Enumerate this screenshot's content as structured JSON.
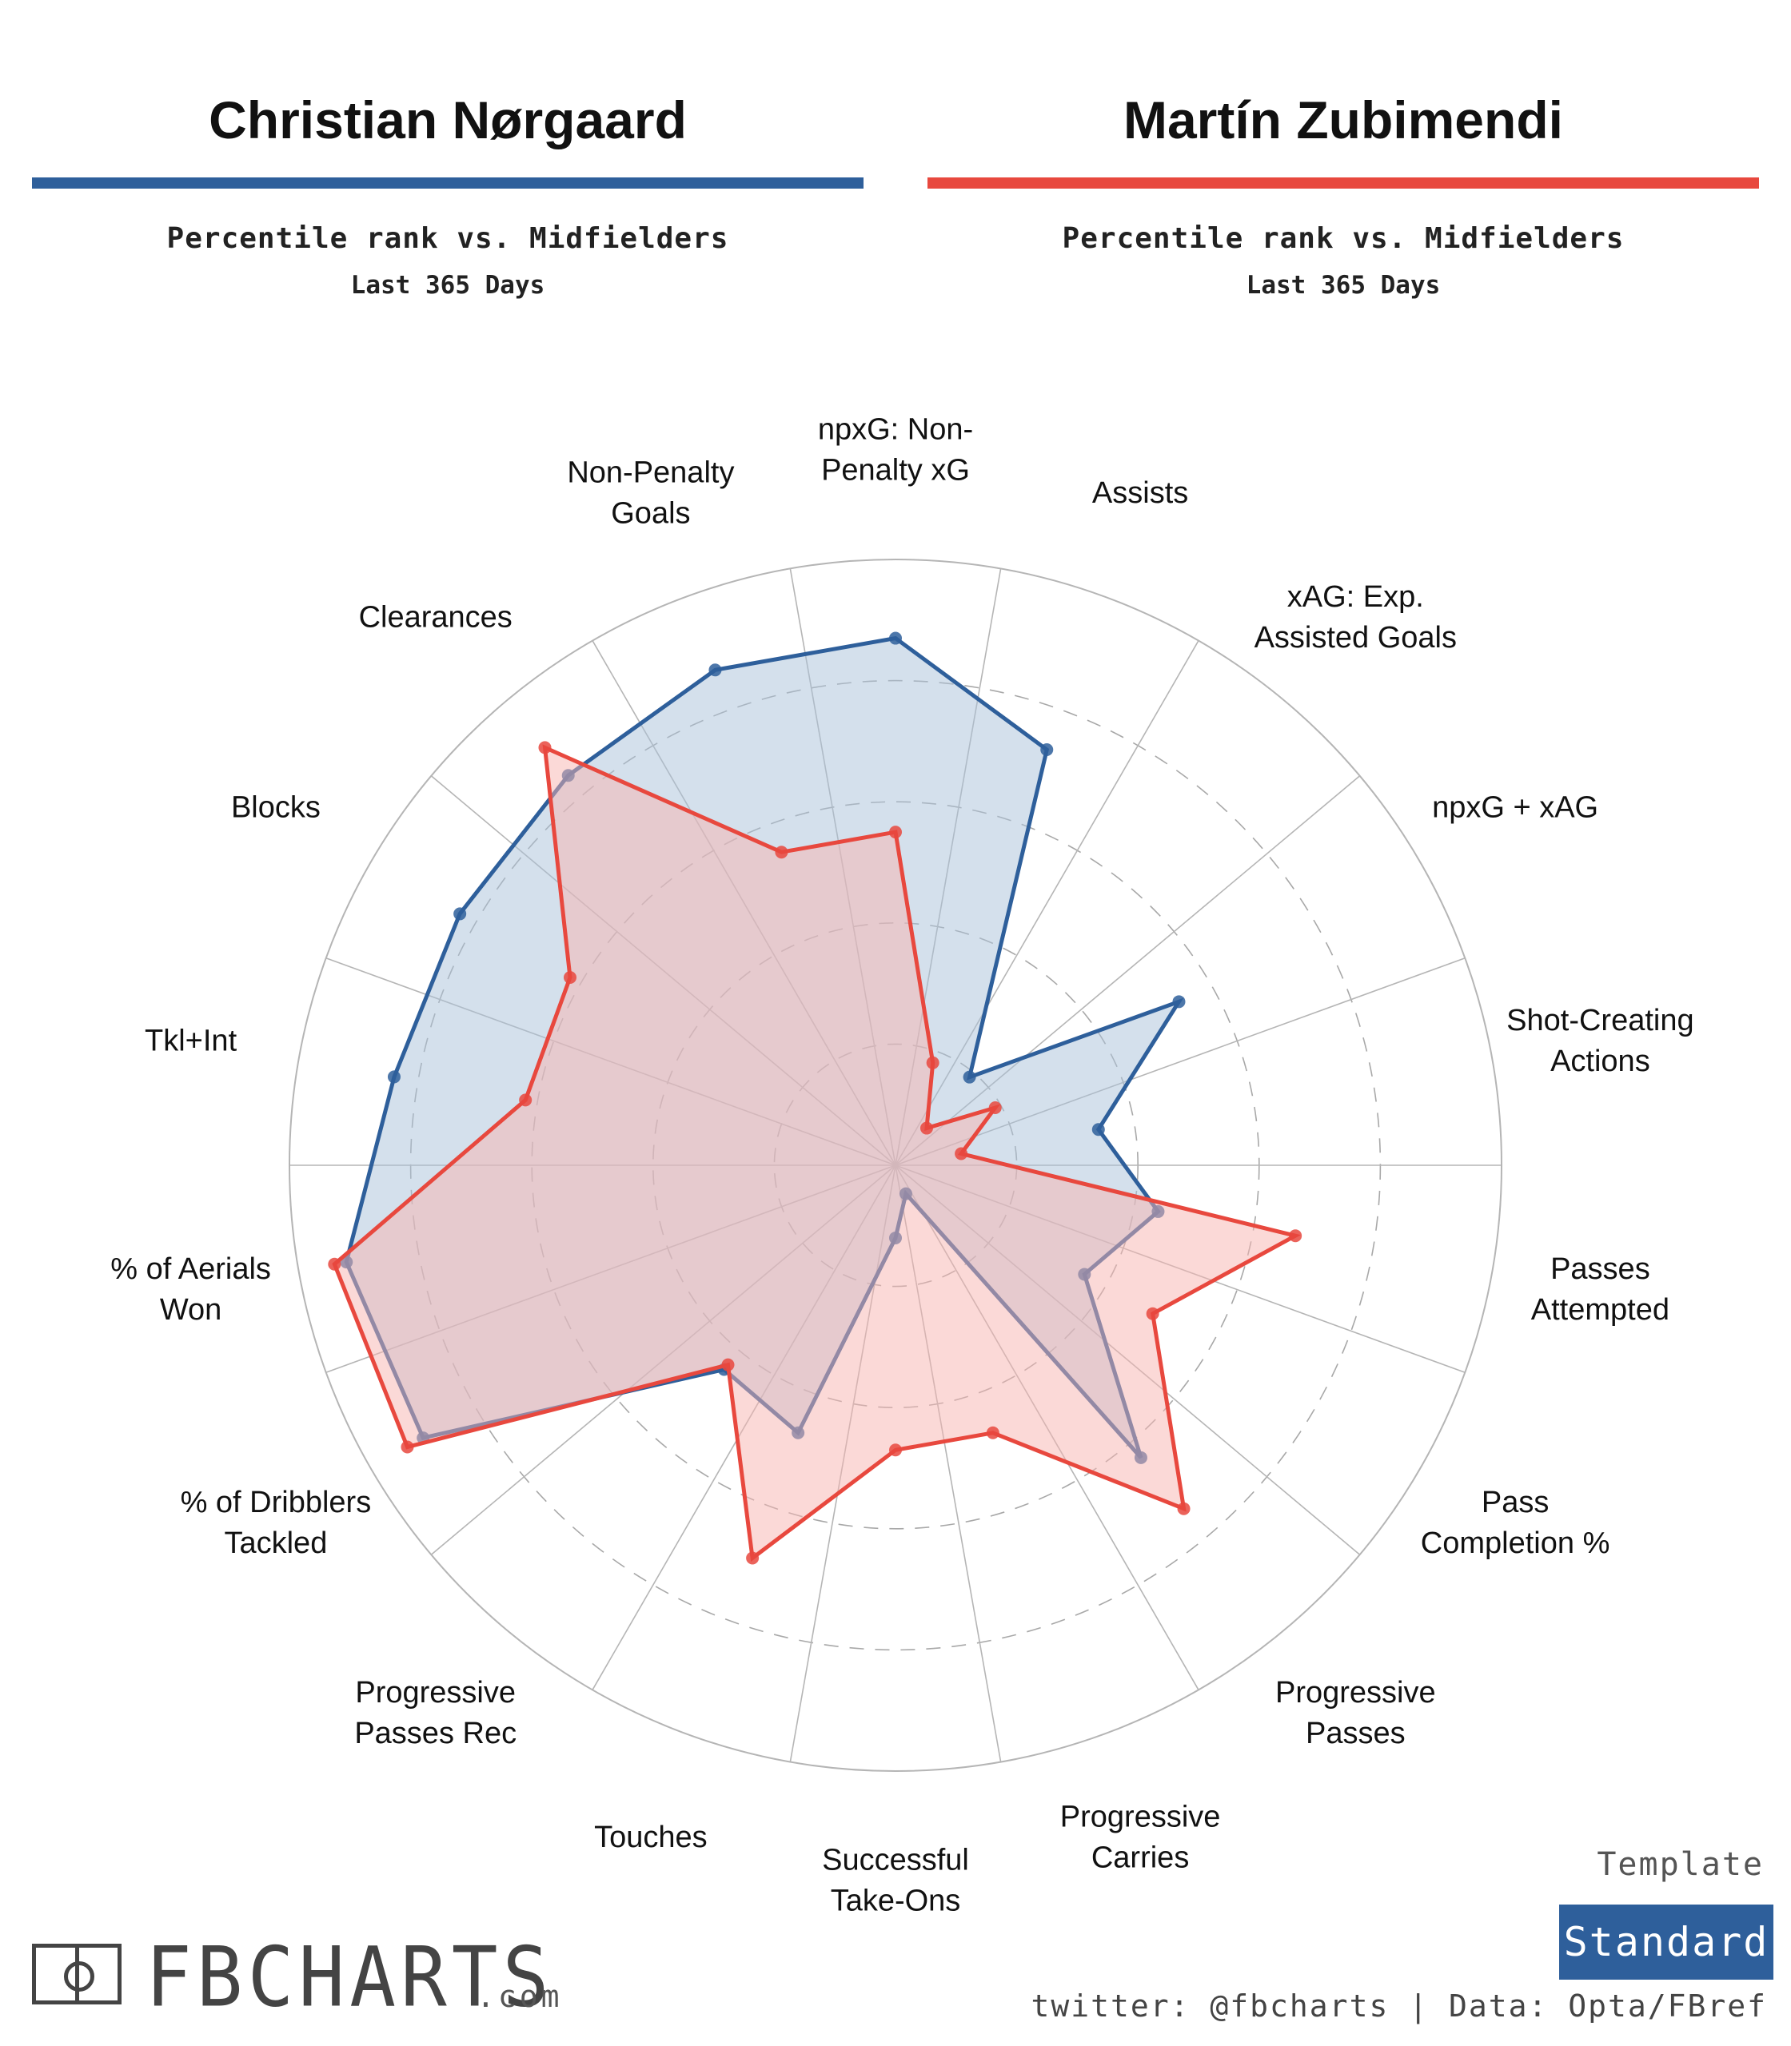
{
  "players": [
    {
      "name": "Christian Nørgaard",
      "subtitle": "Percentile rank vs. Midfielders",
      "period": "Last 365 Days",
      "color": "#2e5f9b"
    },
    {
      "name": "Martín Zubimendi",
      "subtitle": "Percentile rank vs. Midfielders",
      "period": "Last 365 Days",
      "color": "#e8483e"
    }
  ],
  "chart_data": {
    "type": "radar",
    "title": "",
    "range": [
      0,
      100
    ],
    "grid_rings": [
      20,
      40,
      60,
      80,
      100
    ],
    "categories": [
      "Passes Attempted",
      "Pass Completion %",
      "Progressive Passes",
      "Progressive Carries",
      "Successful Take-Ons",
      "Touches",
      "Progressive Passes Rec",
      "% of Dribblers Tackled",
      "% of Aerials Won",
      "Tkl+Int",
      "Blocks",
      "Clearances",
      "Non-Penalty Goals",
      "npxG: Non-Penalty xG",
      "Assists",
      "xAG: Exp. Assisted Goals",
      "npxG + xAG",
      "Shot-Creating Actions"
    ],
    "category_labels": [
      [
        "Passes",
        "Attempted"
      ],
      [
        "Pass",
        "Completion %"
      ],
      [
        "Progressive",
        "Passes"
      ],
      [
        "Progressive",
        "Carries"
      ],
      [
        "Successful",
        "Take-Ons"
      ],
      [
        "Touches"
      ],
      [
        "Progressive",
        "Passes Rec"
      ],
      [
        "% of Dribblers",
        "Tackled"
      ],
      [
        "% of Aerials",
        "Won"
      ],
      [
        "Tkl+Int"
      ],
      [
        "Blocks"
      ],
      [
        "Clearances"
      ],
      [
        "Non-Penalty",
        "Goals"
      ],
      [
        "npxG: Non-",
        "Penalty xG"
      ],
      [
        "Assists"
      ],
      [
        "xAG: Exp.",
        "Assisted Goals"
      ],
      [
        "npxG + xAG"
      ],
      [
        "Shot-Creating",
        "Actions"
      ]
    ],
    "series": [
      {
        "name": "Christian Nørgaard",
        "color": "#2e5f9b",
        "fill": "#a9c2d9",
        "values": [
          44,
          36,
          63,
          5,
          12,
          47,
          44,
          90,
          92,
          84,
          83,
          84,
          87,
          87,
          73,
          19,
          54,
          34
        ]
      },
      {
        "name": "Martín Zubimendi",
        "color": "#e8483e",
        "fill": "#f7b4b0",
        "values": [
          67,
          49,
          74,
          47,
          47,
          69,
          43,
          93,
          94,
          62,
          62,
          90,
          55,
          55,
          18,
          8,
          19,
          11
        ]
      }
    ]
  },
  "footer": {
    "logo_text": "FBCHARTS",
    "logo_suffix": ".com",
    "template_label": "Template",
    "template_name": "Standard",
    "template_color": "#2e5f9b",
    "credit": "twitter: @fbcharts | Data: Opta/FBref"
  }
}
